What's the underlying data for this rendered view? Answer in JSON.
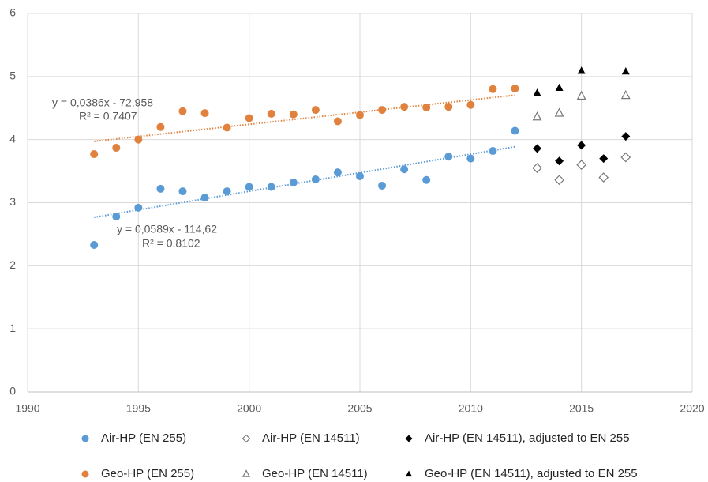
{
  "chart_data": {
    "type": "scatter",
    "grid": true,
    "legend": "bottom",
    "xlim": [
      1990,
      2020
    ],
    "xticks": [
      1990,
      1995,
      2000,
      2005,
      2010,
      2015,
      2020
    ],
    "ylim": [
      0,
      6
    ],
    "yticks": [
      0,
      1,
      2,
      3,
      4,
      5,
      6
    ],
    "series": [
      {
        "name": "Air-HP (EN 255)",
        "color": "#5b9bd5",
        "marker": "circle",
        "x": [
          1993,
          1994,
          1995,
          1996,
          1997,
          1998,
          1999,
          2000,
          2001,
          2002,
          2003,
          2004,
          2005,
          2006,
          2007,
          2008,
          2009,
          2010,
          2011,
          2012
        ],
        "values": [
          2.33,
          2.78,
          2.92,
          3.22,
          3.18,
          3.08,
          3.18,
          3.25,
          3.25,
          3.32,
          3.37,
          3.48,
          3.42,
          3.27,
          3.53,
          3.36,
          3.73,
          3.7,
          3.82,
          4.14
        ],
        "trendline": {
          "slope": 0.0589,
          "intercept": -114.62,
          "equation": "y = 0,0589x - 114,62",
          "r2_label": "R² = 0,8102"
        }
      },
      {
        "name": "Geo-HP (EN 255)",
        "color": "#e0823d",
        "marker": "circle",
        "x": [
          1993,
          1994,
          1995,
          1996,
          1997,
          1998,
          1999,
          2000,
          2001,
          2002,
          2003,
          2004,
          2005,
          2006,
          2007,
          2008,
          2009,
          2010,
          2011,
          2012
        ],
        "values": [
          3.77,
          3.87,
          4.0,
          4.2,
          4.45,
          4.42,
          4.19,
          4.34,
          4.41,
          4.4,
          4.47,
          4.29,
          4.39,
          4.47,
          4.52,
          4.51,
          4.52,
          4.55,
          4.8,
          4.81
        ],
        "trendline": {
          "slope": 0.0386,
          "intercept": -72.958,
          "equation": "y = 0,0386x - 72,958",
          "r2_label": "R² = 0,7407"
        }
      },
      {
        "name": "Air-HP (EN 14511)",
        "color": "#777777",
        "marker": "diamond-open",
        "x": [
          2013,
          2014,
          2015,
          2016,
          2017
        ],
        "values": [
          3.55,
          3.36,
          3.6,
          3.4,
          3.72
        ]
      },
      {
        "name": "Geo-HP (EN 14511)",
        "color": "#777777",
        "marker": "triangle-open",
        "x": [
          2013,
          2014,
          2015,
          2017
        ],
        "values": [
          4.36,
          4.42,
          4.69,
          4.7
        ]
      },
      {
        "name": "Air-HP (EN 14511), adjusted to EN 255",
        "color": "#000000",
        "marker": "diamond",
        "x": [
          2013,
          2014,
          2015,
          2016,
          2017
        ],
        "values": [
          3.86,
          3.66,
          3.91,
          3.7,
          4.05
        ]
      },
      {
        "name": "Geo-HP (EN 14511), adjusted to EN 255",
        "color": "#000000",
        "marker": "triangle",
        "x": [
          2013,
          2014,
          2015,
          2017
        ],
        "values": [
          4.74,
          4.82,
          5.09,
          5.08
        ]
      }
    ]
  }
}
